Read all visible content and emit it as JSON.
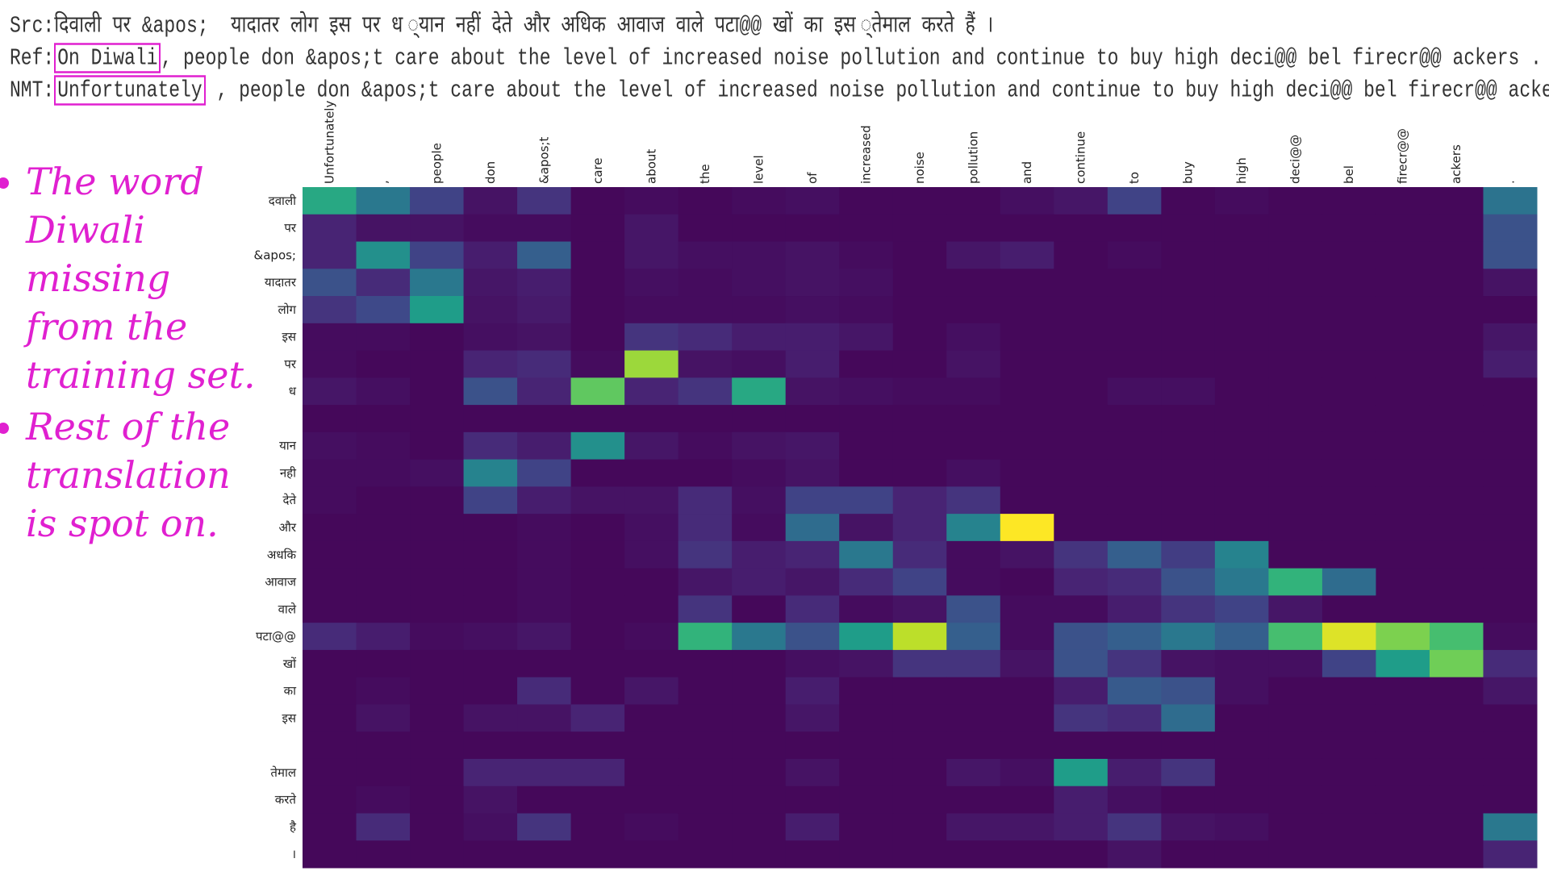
{
  "text_lines": [
    {
      "label": "Src:",
      "text": "दिवाली पर &apos;  यादातर लोग इस पर ध ्यान नहीं देते और अधिक आवाज वाले पटा@@ खों का इस ्तेमाल करते हैं ।"
    },
    {
      "label": "Ref:",
      "boxed": "On Diwali",
      "text": ", people don &apos;t care about the level of increased noise pollution and continue to buy high deci@@ bel firecr@@ ackers ."
    },
    {
      "label": "NMT:",
      "boxed": "Unfortunately",
      "text": " , people don &apos;t care about the level of increased noise pollution and continue to buy high deci@@ bel firecr@@ ackers ."
    }
  ],
  "notes": [
    "The word Diwali missing from the training set.",
    "Rest of the translation is spot on."
  ],
  "chart_data": {
    "type": "heatmap",
    "colormap": "viridis",
    "x_categories": [
      "Unfortunately",
      ",",
      "people",
      "don",
      "&apos;t",
      "care",
      "about",
      "the",
      "level",
      "of",
      "increased",
      "noise",
      "pollution",
      "and",
      "continue",
      "to",
      "buy",
      "high",
      "deci@@",
      "bel",
      "firecr@@",
      "ackers",
      "."
    ],
    "y_categories": [
      "दवाली",
      "पर",
      "&apos;",
      "यादातर",
      "लोग",
      "इस",
      "पर",
      "ध",
      null,
      "यान",
      "नही",
      "देते",
      "और",
      "अधकि",
      "आवाज",
      "वाले",
      "पटा@@",
      "खों",
      "का",
      "इस",
      null,
      "तेमाल",
      "करते",
      "है",
      "।"
    ],
    "values": [
      [
        0.6,
        0.4,
        0.2,
        0.05,
        0.15,
        0.02,
        0.03,
        0.02,
        0.03,
        0.04,
        0.02,
        0.02,
        0.02,
        0.04,
        0.06,
        0.2,
        0.02,
        0.03,
        0.02,
        0.02,
        0.02,
        0.02,
        0.38
      ],
      [
        0.1,
        0.05,
        0.05,
        0.03,
        0.03,
        0.02,
        0.06,
        0.02,
        0.02,
        0.02,
        0.02,
        0.02,
        0.02,
        0.02,
        0.02,
        0.02,
        0.02,
        0.02,
        0.02,
        0.02,
        0.02,
        0.02,
        0.25
      ],
      [
        0.1,
        0.5,
        0.2,
        0.08,
        0.3,
        0.02,
        0.06,
        0.04,
        0.04,
        0.05,
        0.03,
        0.02,
        0.06,
        0.08,
        0.02,
        0.03,
        0.02,
        0.02,
        0.02,
        0.02,
        0.02,
        0.02,
        0.25
      ],
      [
        0.25,
        0.12,
        0.4,
        0.06,
        0.08,
        0.02,
        0.04,
        0.03,
        0.04,
        0.05,
        0.04,
        0.02,
        0.02,
        0.02,
        0.02,
        0.02,
        0.02,
        0.02,
        0.02,
        0.02,
        0.02,
        0.02,
        0.05
      ],
      [
        0.15,
        0.22,
        0.55,
        0.05,
        0.07,
        0.02,
        0.03,
        0.03,
        0.03,
        0.04,
        0.03,
        0.02,
        0.02,
        0.02,
        0.02,
        0.02,
        0.02,
        0.02,
        0.02,
        0.02,
        0.02,
        0.02,
        0.02
      ],
      [
        0.03,
        0.03,
        0.02,
        0.04,
        0.05,
        0.02,
        0.15,
        0.12,
        0.08,
        0.08,
        0.06,
        0.02,
        0.04,
        0.02,
        0.02,
        0.02,
        0.02,
        0.02,
        0.02,
        0.02,
        0.02,
        0.02,
        0.06
      ],
      [
        0.03,
        0.02,
        0.02,
        0.1,
        0.12,
        0.03,
        0.85,
        0.05,
        0.04,
        0.08,
        0.02,
        0.02,
        0.05,
        0.02,
        0.02,
        0.02,
        0.02,
        0.02,
        0.02,
        0.02,
        0.02,
        0.02,
        0.08
      ],
      [
        0.06,
        0.04,
        0.02,
        0.25,
        0.1,
        0.75,
        0.1,
        0.15,
        0.6,
        0.05,
        0.04,
        0.03,
        0.03,
        0.02,
        0.02,
        0.04,
        0.04,
        0.02,
        0.02,
        0.02,
        0.02,
        0.02,
        0.02
      ],
      [
        0.02,
        0.02,
        0.02,
        0.02,
        0.02,
        0.02,
        0.02,
        0.02,
        0.02,
        0.02,
        0.02,
        0.02,
        0.02,
        0.02,
        0.02,
        0.02,
        0.02,
        0.02,
        0.02,
        0.02,
        0.02,
        0.02,
        0.02
      ],
      [
        0.04,
        0.03,
        0.02,
        0.12,
        0.08,
        0.5,
        0.06,
        0.03,
        0.05,
        0.06,
        0.02,
        0.02,
        0.02,
        0.02,
        0.02,
        0.02,
        0.02,
        0.02,
        0.02,
        0.02,
        0.02,
        0.02,
        0.02
      ],
      [
        0.03,
        0.03,
        0.04,
        0.45,
        0.2,
        0.02,
        0.02,
        0.02,
        0.03,
        0.05,
        0.02,
        0.02,
        0.04,
        0.02,
        0.02,
        0.02,
        0.02,
        0.02,
        0.02,
        0.02,
        0.02,
        0.02,
        0.02
      ],
      [
        0.03,
        0.02,
        0.02,
        0.2,
        0.08,
        0.05,
        0.05,
        0.12,
        0.04,
        0.2,
        0.2,
        0.1,
        0.15,
        0.02,
        0.02,
        0.02,
        0.02,
        0.02,
        0.02,
        0.02,
        0.02,
        0.02,
        0.02
      ],
      [
        0.02,
        0.02,
        0.02,
        0.02,
        0.03,
        0.02,
        0.04,
        0.12,
        0.03,
        0.35,
        0.05,
        0.1,
        0.45,
        1.0,
        0.02,
        0.02,
        0.02,
        0.02,
        0.02,
        0.02,
        0.02,
        0.02,
        0.02
      ],
      [
        0.02,
        0.02,
        0.02,
        0.02,
        0.03,
        0.02,
        0.04,
        0.15,
        0.08,
        0.1,
        0.4,
        0.12,
        0.03,
        0.05,
        0.15,
        0.3,
        0.18,
        0.45,
        0.02,
        0.02,
        0.02,
        0.02,
        0.02
      ],
      [
        0.02,
        0.02,
        0.02,
        0.02,
        0.03,
        0.02,
        0.02,
        0.06,
        0.08,
        0.06,
        0.12,
        0.2,
        0.03,
        0.02,
        0.1,
        0.12,
        0.25,
        0.4,
        0.65,
        0.35,
        0.02,
        0.02,
        0.02
      ],
      [
        0.02,
        0.02,
        0.02,
        0.02,
        0.03,
        0.02,
        0.02,
        0.15,
        0.02,
        0.12,
        0.03,
        0.05,
        0.25,
        0.03,
        0.03,
        0.08,
        0.15,
        0.2,
        0.06,
        0.02,
        0.02,
        0.02,
        0.02
      ],
      [
        0.12,
        0.08,
        0.03,
        0.04,
        0.06,
        0.02,
        0.03,
        0.65,
        0.4,
        0.25,
        0.55,
        0.9,
        0.3,
        0.03,
        0.25,
        0.3,
        0.4,
        0.3,
        0.7,
        0.95,
        0.8,
        0.7,
        0.03
      ],
      [
        0.02,
        0.02,
        0.02,
        0.02,
        0.02,
        0.02,
        0.02,
        0.02,
        0.02,
        0.04,
        0.05,
        0.15,
        0.15,
        0.05,
        0.25,
        0.15,
        0.05,
        0.04,
        0.04,
        0.2,
        0.55,
        0.78,
        0.12
      ],
      [
        0.02,
        0.03,
        0.02,
        0.02,
        0.12,
        0.02,
        0.06,
        0.02,
        0.02,
        0.08,
        0.02,
        0.02,
        0.02,
        0.02,
        0.08,
        0.28,
        0.25,
        0.04,
        0.02,
        0.02,
        0.02,
        0.02,
        0.06
      ],
      [
        0.02,
        0.05,
        0.02,
        0.05,
        0.05,
        0.1,
        0.02,
        0.02,
        0.02,
        0.06,
        0.02,
        0.02,
        0.02,
        0.02,
        0.15,
        0.12,
        0.35,
        0.02,
        0.02,
        0.02,
        0.02,
        0.02,
        0.02
      ],
      [
        0.02,
        0.02,
        0.02,
        0.02,
        0.02,
        0.02,
        0.02,
        0.02,
        0.02,
        0.02,
        0.02,
        0.02,
        0.02,
        0.02,
        0.02,
        0.02,
        0.02,
        0.02,
        0.02,
        0.02,
        0.02,
        0.02,
        0.02
      ],
      [
        0.02,
        0.02,
        0.02,
        0.1,
        0.1,
        0.1,
        0.02,
        0.02,
        0.02,
        0.05,
        0.02,
        0.02,
        0.06,
        0.04,
        0.55,
        0.08,
        0.15,
        0.02,
        0.02,
        0.02,
        0.02,
        0.02,
        0.02
      ],
      [
        0.02,
        0.03,
        0.02,
        0.05,
        0.02,
        0.02,
        0.02,
        0.02,
        0.02,
        0.02,
        0.02,
        0.02,
        0.02,
        0.02,
        0.08,
        0.04,
        0.02,
        0.02,
        0.02,
        0.02,
        0.02,
        0.02,
        0.02
      ],
      [
        0.02,
        0.12,
        0.02,
        0.04,
        0.15,
        0.02,
        0.03,
        0.02,
        0.02,
        0.08,
        0.02,
        0.02,
        0.06,
        0.06,
        0.08,
        0.15,
        0.05,
        0.04,
        0.02,
        0.02,
        0.02,
        0.02,
        0.4
      ],
      [
        0.02,
        0.02,
        0.02,
        0.02,
        0.02,
        0.02,
        0.02,
        0.02,
        0.02,
        0.02,
        0.02,
        0.02,
        0.02,
        0.02,
        0.02,
        0.05,
        0.02,
        0.02,
        0.02,
        0.02,
        0.02,
        0.02,
        0.1
      ]
    ]
  }
}
